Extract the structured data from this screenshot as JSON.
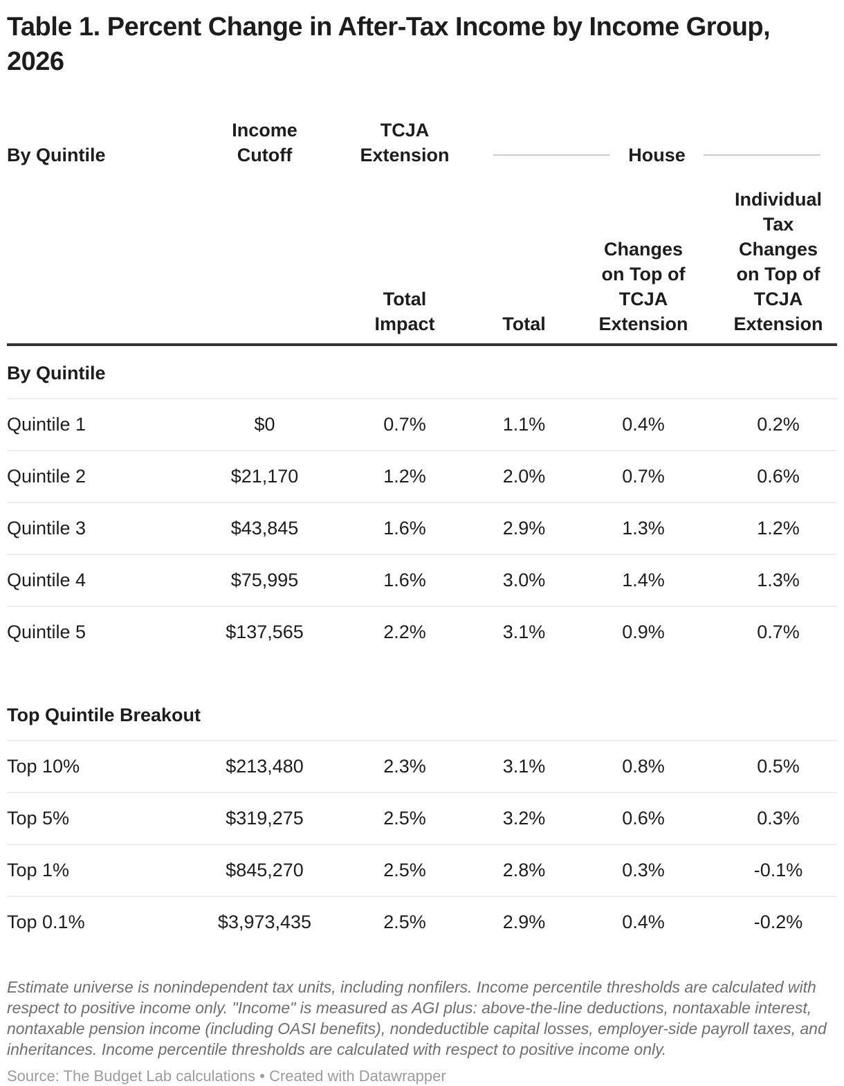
{
  "chart_data": {
    "type": "table",
    "title": "Table 1. Percent Change in After-Tax Income by Income Group, 2026",
    "column_groups": [
      {
        "label": "By Quintile",
        "span": 1
      },
      {
        "label": "Income Cutoff",
        "span": 1
      },
      {
        "label": "TCJA Extension",
        "span": 1
      },
      {
        "label": "House",
        "span": 3
      }
    ],
    "columns": [
      "By Quintile",
      "Income Cutoff",
      "Total Impact",
      "Total",
      "Changes on Top of TCJA Extension",
      "Individual Tax Changes on Top of TCJA Extension"
    ],
    "sections": [
      {
        "label": "By Quintile",
        "rows": [
          [
            "Quintile 1",
            "$0",
            "0.7%",
            "1.1%",
            "0.4%",
            "0.2%"
          ],
          [
            "Quintile 2",
            "$21,170",
            "1.2%",
            "2.0%",
            "0.7%",
            "0.6%"
          ],
          [
            "Quintile 3",
            "$43,845",
            "1.6%",
            "2.9%",
            "1.3%",
            "1.2%"
          ],
          [
            "Quintile 4",
            "$75,995",
            "1.6%",
            "3.0%",
            "1.4%",
            "1.3%"
          ],
          [
            "Quintile 5",
            "$137,565",
            "2.2%",
            "3.1%",
            "0.9%",
            "0.7%"
          ]
        ]
      },
      {
        "label": "Top Quintile Breakout",
        "rows": [
          [
            "Top 10%",
            "$213,480",
            "2.3%",
            "3.1%",
            "0.8%",
            "0.5%"
          ],
          [
            "Top 5%",
            "$319,275",
            "2.5%",
            "3.2%",
            "0.6%",
            "0.3%"
          ],
          [
            "Top 1%",
            "$845,270",
            "2.5%",
            "2.8%",
            "0.3%",
            "-0.1%"
          ],
          [
            "Top 0.1%",
            "$3,973,435",
            "2.5%",
            "2.9%",
            "0.4%",
            "-0.2%"
          ]
        ]
      }
    ],
    "notes": "Estimate universe is nonindependent tax units, including nonfilers. Income percentile thresholds are calculated with respect to positive income only. \"Income\" is measured as AGI plus: above-the-line deductions, nontaxable interest, nontaxable pension income (including OASI benefits), nondeductible capital losses, employer-side payroll taxes, and inheritances. Income percentile thresholds are calculated with respect to positive income only.",
    "source": "Source: The Budget Lab calculations • Created with Datawrapper"
  },
  "colors": {
    "background": "#ffffff",
    "text": "#1d1d1d",
    "header_rule": "#333333",
    "row_divider": "#ededed",
    "house_rule": "#cccccc",
    "notes_text": "#6e6e6e",
    "source_text": "#9b9b9b"
  }
}
